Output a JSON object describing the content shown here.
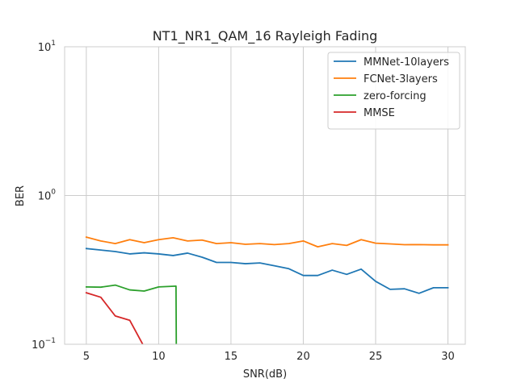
{
  "chart_data": {
    "type": "line",
    "title": "NT1_NR1_QAM_16 Rayleigh Fading",
    "xlabel": "SNR(dB)",
    "ylabel": "BER",
    "xlim": [
      3.5,
      31.2
    ],
    "ylim": [
      0.1,
      10
    ],
    "yscale": "log",
    "grid": true,
    "legend_position": "top-right",
    "x_ticks": [
      5,
      10,
      15,
      20,
      25,
      30
    ],
    "y_ticks": [
      {
        "value": 0.1,
        "base": "10",
        "exp": "−1"
      },
      {
        "value": 1,
        "base": "10",
        "exp": "0"
      },
      {
        "value": 10,
        "base": "10",
        "exp": "1"
      }
    ],
    "series": [
      {
        "name": "MMNet-10layers",
        "color": "#1f77b4",
        "x": [
          5,
          6,
          7,
          8,
          9,
          10,
          11,
          12,
          13,
          14,
          15,
          16,
          17,
          18,
          19,
          20,
          21,
          22,
          23,
          24,
          25,
          26,
          27,
          28,
          29,
          30
        ],
        "y": [
          0.44,
          0.43,
          0.42,
          0.405,
          0.412,
          0.405,
          0.395,
          0.41,
          0.385,
          0.355,
          0.355,
          0.348,
          0.352,
          0.337,
          0.322,
          0.29,
          0.29,
          0.315,
          0.295,
          0.32,
          0.265,
          0.234,
          0.236,
          0.22,
          0.24,
          0.24
        ]
      },
      {
        "name": "FCNet-3layers",
        "color": "#ff7f0e",
        "x": [
          5,
          6,
          7,
          8,
          9,
          10,
          11,
          12,
          13,
          14,
          15,
          16,
          17,
          18,
          19,
          20,
          21,
          22,
          23,
          24,
          25,
          26,
          27,
          28,
          29,
          30
        ],
        "y": [
          0.525,
          0.495,
          0.475,
          0.505,
          0.482,
          0.505,
          0.52,
          0.495,
          0.502,
          0.475,
          0.482,
          0.47,
          0.475,
          0.468,
          0.475,
          0.495,
          0.452,
          0.475,
          0.462,
          0.505,
          0.478,
          0.473,
          0.467,
          0.468,
          0.466,
          0.466
        ]
      },
      {
        "name": "zero-forcing",
        "color": "#2ca02c",
        "x": [
          5,
          6,
          7,
          8,
          9,
          10,
          11.2,
          11.22
        ],
        "y": [
          0.243,
          0.242,
          0.25,
          0.232,
          0.228,
          0.243,
          0.246,
          0.1
        ]
      },
      {
        "name": "MMSE",
        "color": "#d62728",
        "x": [
          5,
          6,
          7,
          8,
          8.9
        ],
        "y": [
          0.222,
          0.207,
          0.155,
          0.145,
          0.1
        ]
      }
    ]
  }
}
